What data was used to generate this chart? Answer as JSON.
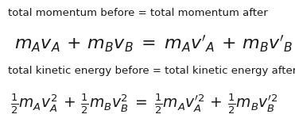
{
  "background_color": "#ffffff",
  "text_color": "#1a1a1a",
  "label1": "total momentum before = total momentum after",
  "label2": "total kinetic energy before = total kinetic energy after",
  "eq1": "$m_A v_A \\, + \\, m_B v_B \\; = \\; m_A v'_A \\, + \\, m_B v'_B$",
  "eq2": "$\\frac{1}{2} m_A v_A^2 \\, + \\, \\frac{1}{2} m_B v_B^2 \\; = \\; \\frac{1}{2} m_A v_A^{\\prime 2} \\, + \\, \\frac{1}{2} m_B v_B^{\\prime 2}$",
  "label_fontsize": 9.5,
  "eq1_fontsize": 16,
  "eq2_fontsize": 13.5
}
